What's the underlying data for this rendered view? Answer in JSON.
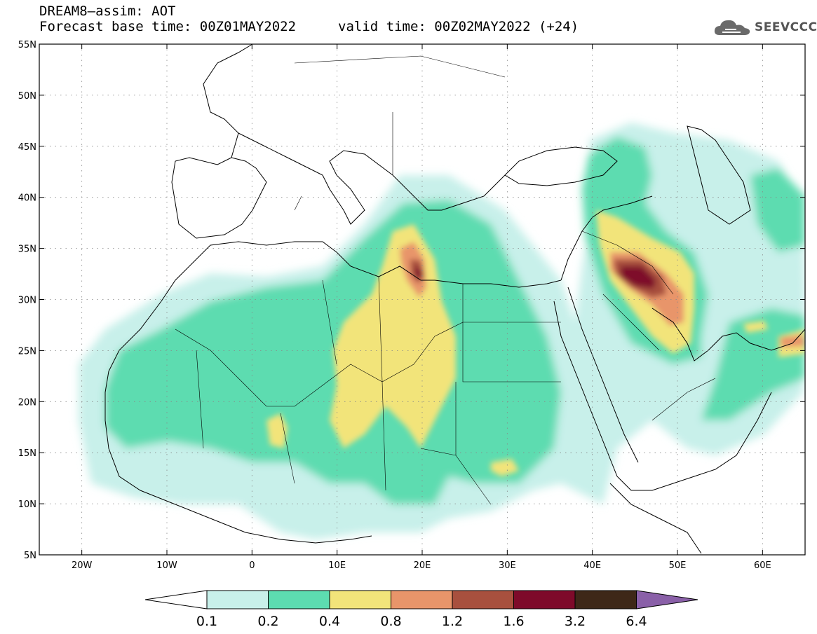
{
  "header": {
    "title_line1": "DREAM8–assim: AOT",
    "title_line2": "Forecast base time: 00Z01MAY2022",
    "valid_time": "valid time: 00Z02MAY2022 (+24)",
    "logo_text": "SEEVCCC",
    "logo_icon": "cloud-icon"
  },
  "map": {
    "lat_labels": [
      "55N",
      "50N",
      "45N",
      "40N",
      "35N",
      "30N",
      "25N",
      "20N",
      "15N",
      "10N",
      "5N"
    ],
    "lon_labels": [
      "20W",
      "10W",
      "0",
      "10E",
      "20E",
      "30E",
      "40E",
      "50E",
      "60E"
    ],
    "lat_range": [
      5,
      55
    ],
    "lon_range": [
      -25,
      65
    ],
    "grid": "dotted"
  },
  "colorbar": {
    "levels": [
      "0.1",
      "0.2",
      "0.4",
      "0.8",
      "1.2",
      "1.6",
      "3.2",
      "6.4"
    ],
    "colors": [
      "#c8f0ea",
      "#5ddcb0",
      "#f2e47a",
      "#e8956a",
      "#a8503e",
      "#7e0a2a",
      "#3e2818",
      "#8a60a8"
    ],
    "under_color": "#ffffff",
    "over_color": "#8a60a8"
  }
}
